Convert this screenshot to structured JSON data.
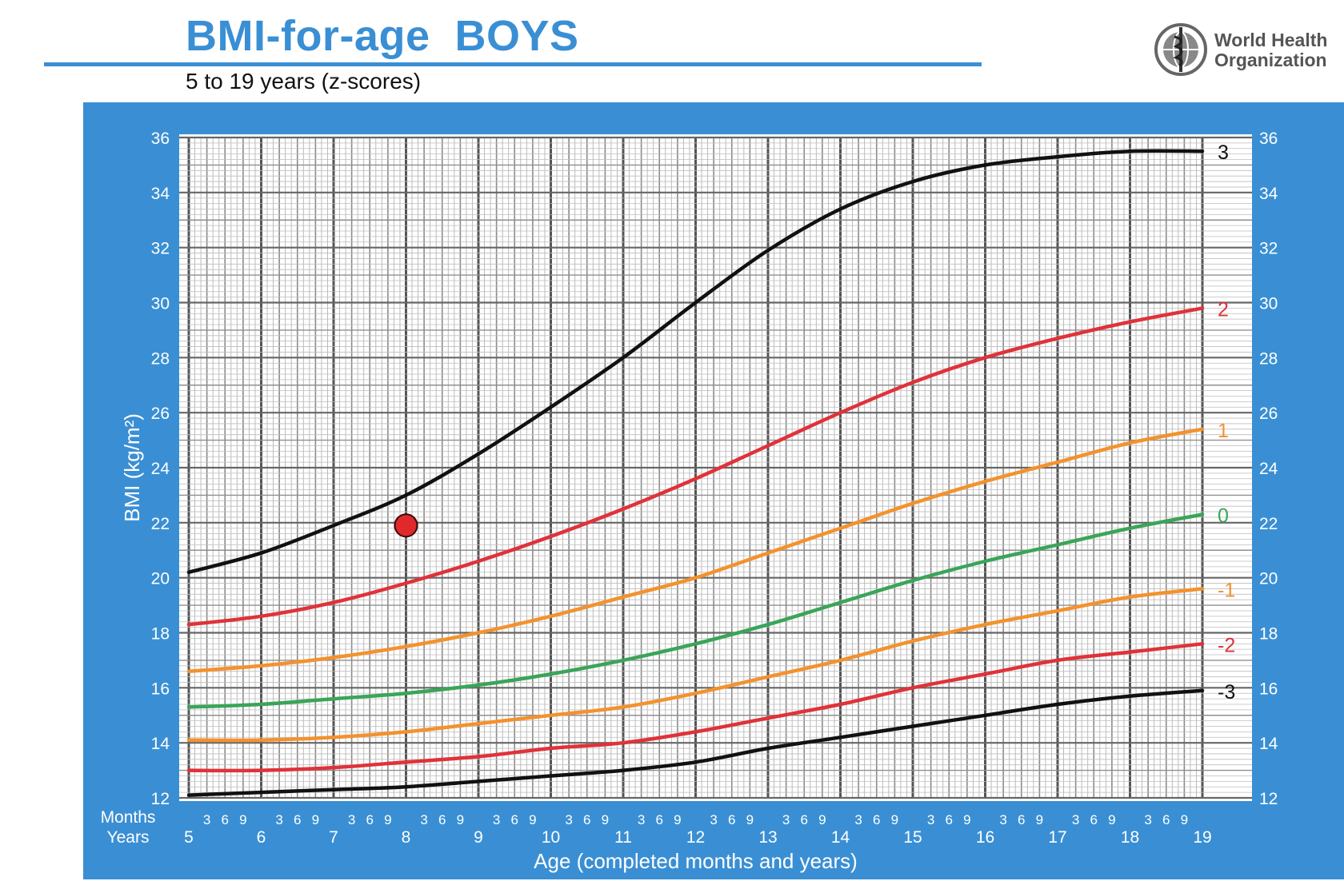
{
  "header": {
    "title": "BMI-for-age  BOYS",
    "subtitle": "5 to 19 years (z-scores)"
  },
  "logo": {
    "line1": "World Health",
    "line2": "Organization",
    "icon": "who-emblem-icon"
  },
  "colors": {
    "brand_blue": "#3a8fd4",
    "z3": "#111111",
    "z2": "#e0323a",
    "z1": "#f3922e",
    "z0": "#3aa559",
    "marker": "#e0292c"
  },
  "chart_data": {
    "type": "line",
    "title": "BMI-for-age  BOYS",
    "subtitle": "5 to 19 years (z-scores)",
    "xlabel": "Age (completed months and years)",
    "ylabel": "BMI (kg/m²)",
    "xlim": [
      5,
      19
    ],
    "ylim": [
      12,
      36
    ],
    "y_ticks": [
      12,
      14,
      16,
      18,
      20,
      22,
      24,
      26,
      28,
      30,
      32,
      34,
      36
    ],
    "x_year_ticks": [
      5,
      6,
      7,
      8,
      9,
      10,
      11,
      12,
      13,
      14,
      15,
      16,
      17,
      18,
      19
    ],
    "x_month_ticks": [
      "3",
      "6",
      "9"
    ],
    "x_row_labels": {
      "months": "Months",
      "years": "Years"
    },
    "grid": true,
    "x": [
      5,
      6,
      7,
      8,
      9,
      10,
      11,
      12,
      13,
      14,
      15,
      16,
      17,
      18,
      19
    ],
    "series": [
      {
        "name": "3",
        "color": "#111111",
        "values": [
          20.2,
          20.9,
          21.9,
          23.0,
          24.5,
          26.2,
          28.0,
          30.0,
          31.9,
          33.4,
          34.4,
          35.0,
          35.3,
          35.5,
          35.5
        ]
      },
      {
        "name": "2",
        "color": "#e0323a",
        "values": [
          18.3,
          18.6,
          19.1,
          19.8,
          20.6,
          21.5,
          22.5,
          23.6,
          24.8,
          26.0,
          27.1,
          28.0,
          28.7,
          29.3,
          29.8
        ]
      },
      {
        "name": "1",
        "color": "#f3922e",
        "values": [
          16.6,
          16.8,
          17.1,
          17.5,
          18.0,
          18.6,
          19.3,
          20.0,
          20.9,
          21.8,
          22.7,
          23.5,
          24.2,
          24.9,
          25.4
        ]
      },
      {
        "name": "0",
        "color": "#3aa559",
        "values": [
          15.3,
          15.4,
          15.6,
          15.8,
          16.1,
          16.5,
          17.0,
          17.6,
          18.3,
          19.1,
          19.9,
          20.6,
          21.2,
          21.8,
          22.3
        ]
      },
      {
        "name": "-1",
        "color": "#f3922e",
        "values": [
          14.1,
          14.1,
          14.2,
          14.4,
          14.7,
          15.0,
          15.3,
          15.8,
          16.4,
          17.0,
          17.7,
          18.3,
          18.8,
          19.3,
          19.6
        ]
      },
      {
        "name": "-2",
        "color": "#e0323a",
        "values": [
          13.0,
          13.0,
          13.1,
          13.3,
          13.5,
          13.8,
          14.0,
          14.4,
          14.9,
          15.4,
          16.0,
          16.5,
          17.0,
          17.3,
          17.6
        ]
      },
      {
        "name": "-3",
        "color": "#111111",
        "values": [
          12.1,
          12.2,
          12.3,
          12.4,
          12.6,
          12.8,
          13.0,
          13.3,
          13.8,
          14.2,
          14.6,
          15.0,
          15.4,
          15.7,
          15.9
        ]
      }
    ],
    "markers": [
      {
        "x": 8.0,
        "y": 21.9,
        "color": "#e0292c"
      }
    ]
  }
}
